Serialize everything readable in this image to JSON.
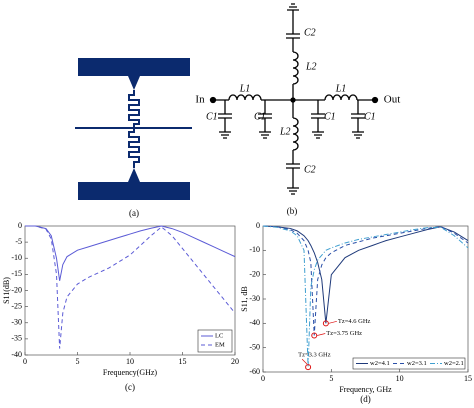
{
  "diagram": {
    "caption_a": "(a)",
    "caption_b": "(b)",
    "label_in": "In",
    "label_out": "Out",
    "label_l1_left": "L1",
    "label_l1_right": "L1",
    "label_l2_top": "L2",
    "label_l2_bottom": "L2",
    "label_c2_top": "C2",
    "label_c2_bottom": "C2",
    "label_c1_a": "C1",
    "label_c1_b": "C1",
    "label_c1_c": "C1",
    "label_c1_d": "C1"
  },
  "chart_data": [
    {
      "type": "line",
      "caption": "(c)",
      "xlabel": "Frequency(GHz)",
      "ylabel": "S11(dB)",
      "xlim": [
        0,
        20
      ],
      "ylim": [
        -40,
        0
      ],
      "xticks": [
        0,
        5,
        10,
        15,
        20
      ],
      "yticks": [
        0,
        -5,
        -10,
        -15,
        -20,
        -25,
        -30,
        -35,
        -40
      ],
      "x": [
        0,
        1,
        2,
        2.5,
        3,
        3.3,
        3.6,
        4,
        5,
        6,
        7,
        8,
        9,
        10,
        11,
        12,
        13,
        14,
        15,
        16,
        17,
        18,
        19,
        20
      ],
      "legend": "lower right",
      "series": [
        {
          "name": "LC",
          "color": "#5b5bd6",
          "linestyle": "solid",
          "values": [
            0,
            0,
            -0.8,
            -3,
            -10,
            -17,
            -12,
            -9.5,
            -7.5,
            -6.5,
            -5.5,
            -4.5,
            -3.5,
            -2.5,
            -1.5,
            -0.7,
            0,
            -0.8,
            -2,
            -3.5,
            -5,
            -6.5,
            -8,
            -9.5
          ]
        },
        {
          "name": "EM",
          "color": "#5b5bd6",
          "linestyle": "dashed",
          "values": [
            0,
            0,
            -1,
            -4,
            -15,
            -38,
            -27,
            -22,
            -18,
            -16,
            -14.5,
            -13,
            -11,
            -9,
            -6,
            -3,
            -0.3,
            -3,
            -7,
            -11,
            -15,
            -19,
            -23,
            -27
          ]
        }
      ]
    },
    {
      "type": "line",
      "caption": "(d)",
      "xlabel": "Frequency, GHz",
      "ylabel": "S11, dB",
      "xlim": [
        0,
        15
      ],
      "ylim": [
        -60,
        0
      ],
      "xticks": [
        0,
        5,
        10,
        15
      ],
      "yticks": [
        0,
        -10,
        -20,
        -30,
        -40,
        -50,
        -60
      ],
      "x": [
        0,
        1,
        2,
        2.5,
        3,
        3.3,
        3.5,
        3.75,
        4,
        4.3,
        4.6,
        5,
        6,
        7,
        8,
        9,
        10,
        11,
        12,
        13,
        14,
        15
      ],
      "legend": "lower right",
      "series": [
        {
          "name": "w2=4.1",
          "color": "#1f3a7a",
          "linestyle": "solid",
          "values": [
            0,
            -0.3,
            -1,
            -2,
            -4,
            -6,
            -8,
            -11,
            -15,
            -22,
            -40,
            -20,
            -13,
            -10,
            -8,
            -6,
            -4.5,
            -3,
            -1.5,
            -0.3,
            -2.5,
            -6
          ]
        },
        {
          "name": "w2=3.1",
          "color": "#2a4fa8",
          "linestyle": "dashed",
          "values": [
            0,
            -0.3,
            -1.5,
            -3,
            -6,
            -10,
            -15,
            -45,
            -22,
            -16,
            -13,
            -11,
            -8,
            -6.5,
            -5,
            -4,
            -3,
            -2,
            -1,
            -0.2,
            -3,
            -7
          ]
        },
        {
          "name": "w2=2.1",
          "color": "#3f9fd0",
          "linestyle": "dashdot",
          "values": [
            0,
            -0.5,
            -2,
            -4,
            -10,
            -58,
            -25,
            -18,
            -14,
            -12,
            -10,
            -9,
            -7,
            -5.5,
            -4.5,
            -3.5,
            -2.5,
            -1.5,
            -0.7,
            -0.5,
            -4,
            -9
          ]
        }
      ],
      "annotations": [
        {
          "text": "Tz=4.6 GHz",
          "x": 4.6,
          "y": -40
        },
        {
          "text": "Tz=3.75 GHz",
          "x": 3.75,
          "y": -45
        },
        {
          "text": "Tz=3.3 GHz",
          "x": 3.3,
          "y": -58
        }
      ]
    }
  ]
}
